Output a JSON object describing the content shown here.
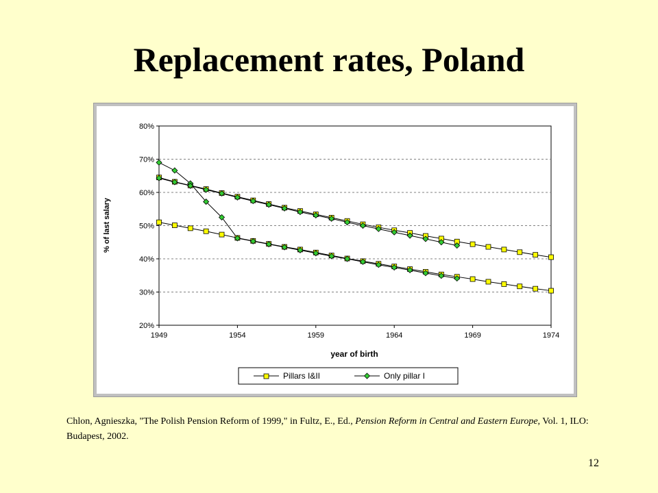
{
  "slide": {
    "title": "Replacement rates, Poland",
    "page_number": "12"
  },
  "citation": {
    "part1": "Chlon, Agnieszka, \"The Polish Pension Reform of 1999,\" in Fultz, E., Ed., ",
    "italic": "Pension Reform in Central and Eastern Europe",
    "part2": ", Vol. 1, ILO: Budapest, 2002."
  },
  "chart_data": {
    "type": "line",
    "title": "",
    "xlabel": "year of birth",
    "ylabel": "% of last salary",
    "xlim": [
      1949,
      1974
    ],
    "ylim": [
      0.2,
      0.8
    ],
    "x_ticks": [
      "1949",
      "1954",
      "1959",
      "1964",
      "1969",
      "1974"
    ],
    "y_ticks": [
      "20%",
      "30%",
      "40%",
      "50%",
      "60%",
      "70%",
      "80%"
    ],
    "grid": "horizontal dashed",
    "legend_position": "bottom",
    "colors": {
      "pillars": "#ffff00",
      "only_pillar": "#33cc33",
      "line": "#000000"
    },
    "series": [
      {
        "name": "Pillars I&II",
        "marker": "square",
        "lines": [
          {
            "x": [
              1949,
              1950,
              1951,
              1952,
              1953,
              1954,
              1955,
              1956,
              1957,
              1958,
              1959,
              1960,
              1961,
              1962,
              1963,
              1964,
              1965,
              1966,
              1967,
              1968,
              1969,
              1970,
              1971,
              1972,
              1973,
              1974
            ],
            "y": [
              0.645,
              0.632,
              0.621,
              0.61,
              0.598,
              0.587,
              0.576,
              0.565,
              0.554,
              0.544,
              0.534,
              0.524,
              0.514,
              0.504,
              0.495,
              0.486,
              0.478,
              0.469,
              0.461,
              0.452,
              0.444,
              0.436,
              0.428,
              0.42,
              0.412,
              0.405
            ]
          },
          {
            "x": [
              1949,
              1950,
              1951,
              1952,
              1953,
              1954,
              1955,
              1956,
              1957,
              1958,
              1959,
              1960,
              1961,
              1962,
              1963,
              1964,
              1965,
              1966,
              1967,
              1968,
              1969,
              1970,
              1971,
              1972,
              1973,
              1974
            ],
            "y": [
              0.51,
              0.501,
              0.492,
              0.483,
              0.473,
              0.463,
              0.454,
              0.445,
              0.436,
              0.428,
              0.419,
              0.41,
              0.401,
              0.393,
              0.385,
              0.377,
              0.369,
              0.361,
              0.353,
              0.346,
              0.339,
              0.331,
              0.324,
              0.317,
              0.31,
              0.304
            ]
          }
        ]
      },
      {
        "name": "Only pillar I",
        "marker": "diamond",
        "lines": [
          {
            "x": [
              1949,
              1950,
              1951,
              1952,
              1953,
              1954,
              1955,
              1956,
              1957,
              1958,
              1959,
              1960,
              1961,
              1962,
              1963,
              1964,
              1965,
              1966,
              1967,
              1968
            ],
            "y": [
              0.69,
              0.666,
              0.627,
              0.572,
              0.525,
              0.462,
              0.453,
              0.444,
              0.435,
              0.426,
              0.417,
              0.408,
              0.4,
              0.391,
              0.382,
              0.374,
              0.366,
              0.357,
              0.349,
              0.341
            ]
          },
          {
            "x": [
              1949,
              1950,
              1951,
              1952,
              1953,
              1954,
              1955,
              1956,
              1957,
              1958,
              1959,
              1960,
              1961,
              1962,
              1963,
              1964,
              1965,
              1966,
              1967,
              1968
            ],
            "y": [
              0.643,
              0.631,
              0.62,
              0.608,
              0.597,
              0.585,
              0.574,
              0.563,
              0.552,
              0.541,
              0.531,
              0.521,
              0.51,
              0.5,
              0.49,
              0.48,
              0.47,
              0.46,
              0.45,
              0.44
            ]
          }
        ]
      }
    ]
  }
}
